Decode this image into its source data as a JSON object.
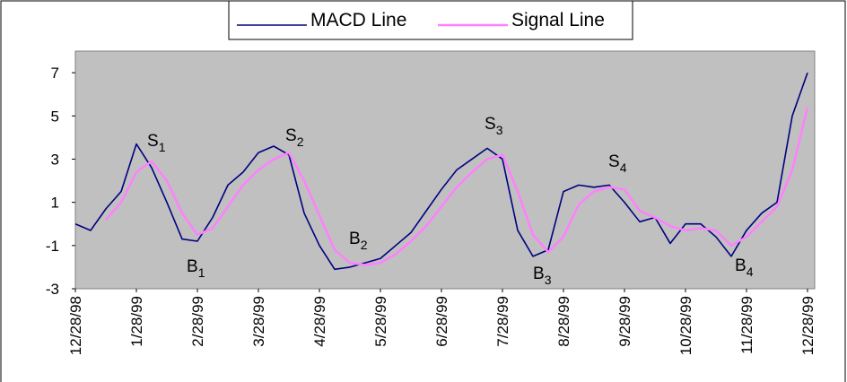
{
  "chart_data": {
    "type": "line",
    "categories": [
      "12/28/98",
      null,
      null,
      null,
      "1/28/99",
      null,
      null,
      null,
      "2/28/99",
      null,
      null,
      null,
      "3/28/99",
      null,
      null,
      null,
      "4/28/99",
      null,
      null,
      null,
      "5/28/99",
      null,
      null,
      null,
      "6/28/99",
      null,
      null,
      null,
      "7/28/99",
      null,
      null,
      null,
      "8/28/99",
      null,
      null,
      null,
      "9/28/99",
      null,
      null,
      null,
      "10/28/99",
      null,
      null,
      null,
      "11/28/99",
      null,
      null,
      null,
      "12/28/99"
    ],
    "series": [
      {
        "name": "MACD Line",
        "color": "#000080",
        "values": [
          0.0,
          -0.3,
          0.7,
          1.5,
          3.7,
          2.6,
          1.0,
          -0.7,
          -0.8,
          0.3,
          1.8,
          2.4,
          3.3,
          3.6,
          3.2,
          0.5,
          -1.0,
          -2.1,
          -2.0,
          -1.8,
          -1.6,
          -1.0,
          -0.4,
          0.6,
          1.6,
          2.5,
          3.0,
          3.5,
          3.0,
          -0.3,
          -1.5,
          -1.2,
          1.5,
          1.8,
          1.7,
          1.8,
          1.0,
          0.1,
          0.3,
          -0.9,
          0.0,
          0.0,
          -0.6,
          -1.5,
          -0.3,
          0.5,
          1.0,
          5.0,
          7.0
        ]
      },
      {
        "name": "Signal Line",
        "color": "#ff80ff",
        "values": [
          null,
          null,
          0.2,
          1.0,
          2.4,
          2.9,
          2.0,
          0.5,
          -0.5,
          -0.2,
          0.8,
          1.8,
          2.5,
          3.0,
          3.3,
          2.0,
          0.4,
          -1.2,
          -1.8,
          -1.9,
          -1.8,
          -1.4,
          -0.8,
          -0.1,
          0.8,
          1.7,
          2.4,
          3.0,
          3.2,
          1.5,
          -0.5,
          -1.3,
          -0.6,
          0.9,
          1.5,
          1.7,
          1.6,
          0.6,
          0.3,
          -0.1,
          -0.3,
          -0.2,
          -0.3,
          -1.0,
          -0.6,
          0.1,
          0.8,
          2.5,
          5.4
        ]
      }
    ],
    "ylim": [
      -3,
      8
    ],
    "yticks": [
      -3,
      -1,
      1,
      3,
      5,
      7
    ],
    "grid": false,
    "legend": "top",
    "plot_background": "#c0c0c0",
    "annotations": [
      {
        "text": "S",
        "sub": "1"
      },
      {
        "text": "B",
        "sub": "1"
      },
      {
        "text": "S",
        "sub": "2"
      },
      {
        "text": "B",
        "sub": "2"
      },
      {
        "text": "S",
        "sub": "3"
      },
      {
        "text": "B",
        "sub": "3"
      },
      {
        "text": "S",
        "sub": "4"
      },
      {
        "text": "B",
        "sub": "4"
      }
    ]
  }
}
